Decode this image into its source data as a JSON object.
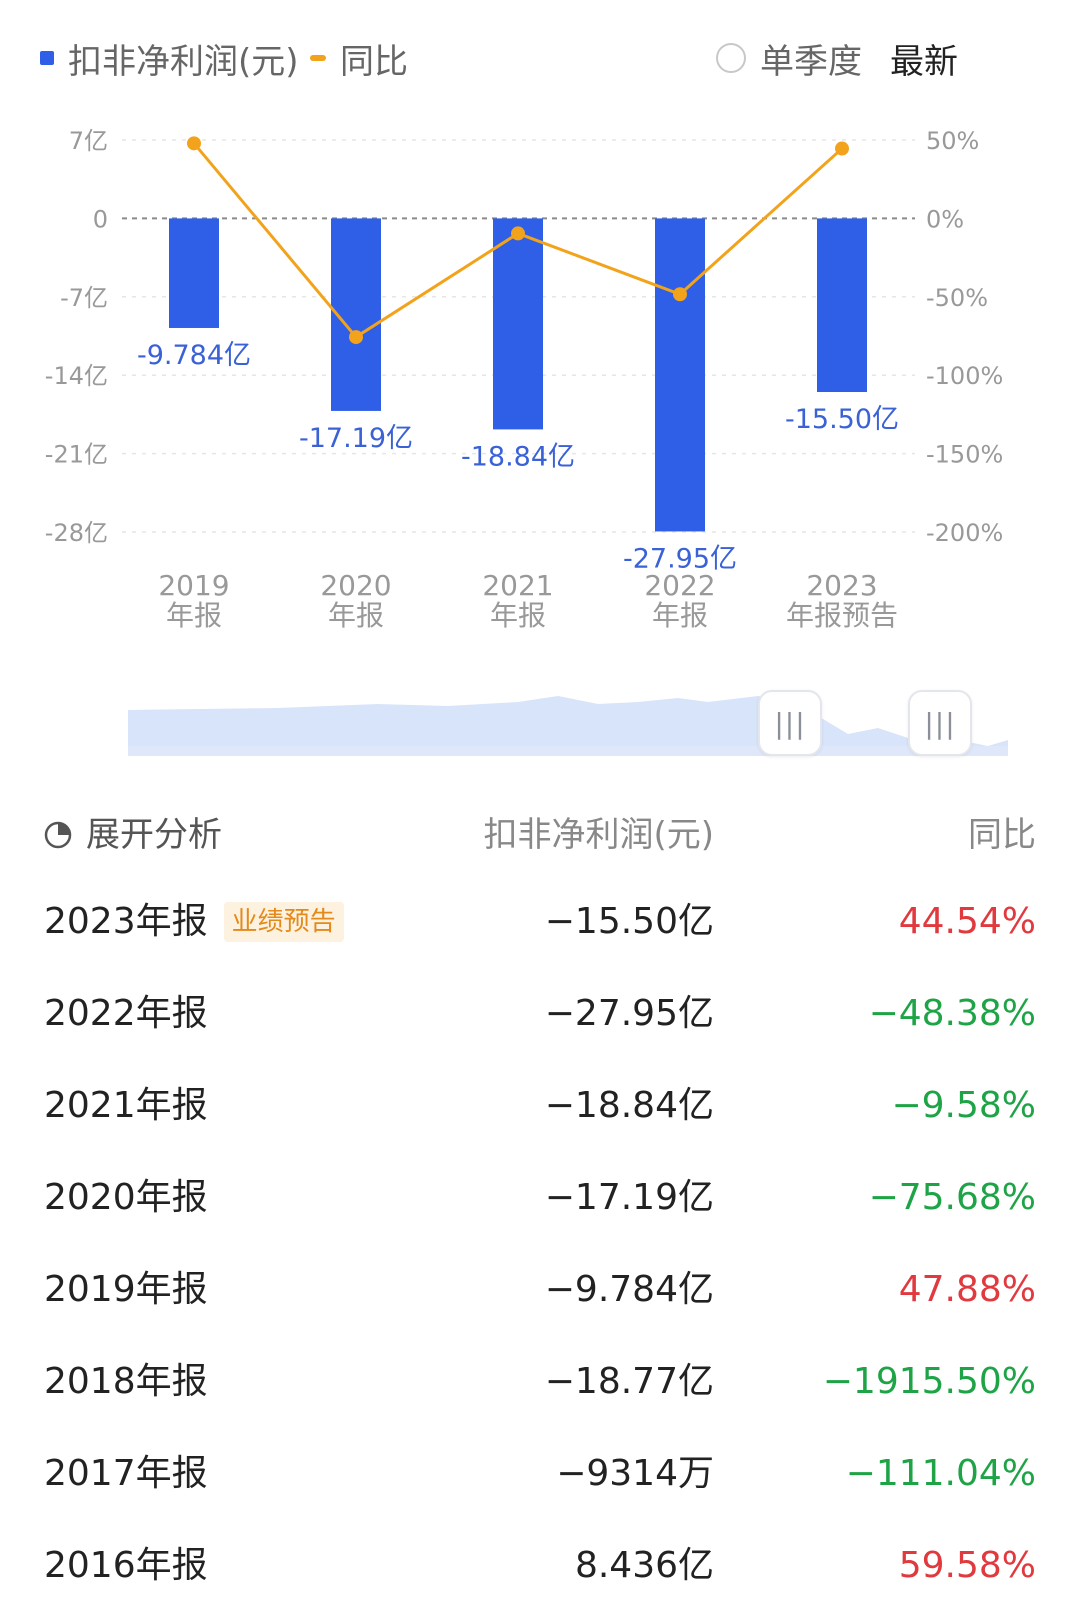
{
  "legend": {
    "bar_label": "扣非净利润(元)",
    "line_label": "同比",
    "toggle_label": "单季度",
    "latest_label": "最新"
  },
  "colors": {
    "bar": "#2f5fe6",
    "line": "#f2a31b",
    "positive": "#e0393e",
    "negative": "#1ea446",
    "tag_text": "#e38a1a",
    "tag_bg": "#fdf1e0"
  },
  "chart_data": {
    "type": "bar",
    "categories": [
      "2019\n年报",
      "2020\n年报",
      "2021\n年报",
      "2022\n年报",
      "2023\n年报预告"
    ],
    "series": [
      {
        "name": "扣非净利润(元)",
        "type": "bar",
        "values": [
          -9.784,
          -17.19,
          -18.84,
          -27.95,
          -15.5
        ],
        "data_labels": [
          "-9.784亿",
          "-17.19亿",
          "-18.84亿",
          "-27.95亿",
          "-15.50亿"
        ],
        "axis": "left"
      },
      {
        "name": "同比",
        "type": "line",
        "values": [
          47.88,
          -75.68,
          -9.58,
          -48.38,
          44.54
        ],
        "axis": "right"
      }
    ],
    "y_left": {
      "ticks": [
        7,
        0,
        -7,
        -14,
        -21,
        -28
      ],
      "tick_labels": [
        "7亿",
        "0",
        "-7亿",
        "-14亿",
        "-21亿",
        "-28亿"
      ],
      "ylim": [
        -28,
        7
      ]
    },
    "y_right": {
      "ticks": [
        50,
        0,
        -50,
        -100,
        -150,
        -200
      ],
      "tick_labels": [
        "50%",
        "0%",
        "-50%",
        "-100%",
        "-150%",
        "-200%"
      ],
      "ylim": [
        -200,
        50
      ]
    },
    "grid": true,
    "legend_position": "top-left"
  },
  "table": {
    "header": {
      "analysis_label": "展开分析",
      "value_label": "扣非净利润(元)",
      "yoy_label": "同比"
    },
    "rows": [
      {
        "period": "2023年报",
        "tag": "业绩预告",
        "value": "−15.50亿",
        "yoy": "44.54%",
        "sign": "pos"
      },
      {
        "period": "2022年报",
        "tag": "",
        "value": "−27.95亿",
        "yoy": "−48.38%",
        "sign": "neg"
      },
      {
        "period": "2021年报",
        "tag": "",
        "value": "−18.84亿",
        "yoy": "−9.58%",
        "sign": "neg"
      },
      {
        "period": "2020年报",
        "tag": "",
        "value": "−17.19亿",
        "yoy": "−75.68%",
        "sign": "neg"
      },
      {
        "period": "2019年报",
        "tag": "",
        "value": "−9.784亿",
        "yoy": "47.88%",
        "sign": "pos"
      },
      {
        "period": "2018年报",
        "tag": "",
        "value": "−18.77亿",
        "yoy": "−1915.50%",
        "sign": "neg"
      },
      {
        "period": "2017年报",
        "tag": "",
        "value": "−9314万",
        "yoy": "−111.04%",
        "sign": "neg"
      },
      {
        "period": "2016年报",
        "tag": "",
        "value": "8.436亿",
        "yoy": "59.58%",
        "sign": "pos"
      }
    ]
  }
}
